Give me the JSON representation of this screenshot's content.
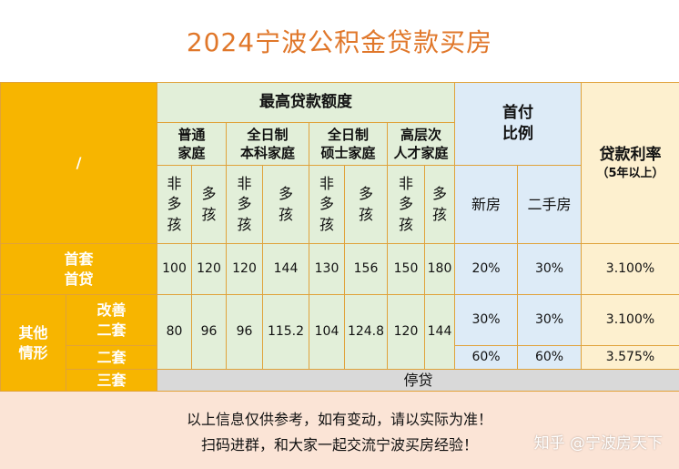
{
  "title": "2024宁波公积金贷款买房",
  "corner": "/",
  "header": {
    "max_loan": "最高贷款额度",
    "categories": [
      {
        "line1": "普通",
        "line2": "家庭"
      },
      {
        "line1": "全日制",
        "line2": "本科家庭"
      },
      {
        "line1": "全日制",
        "line2": "硕士家庭"
      },
      {
        "line1": "高层次",
        "line2": "人才家庭"
      }
    ],
    "non_multi": [
      "非",
      "多",
      "孩"
    ],
    "multi": [
      "多",
      "孩"
    ],
    "down_payment": {
      "line1": "首付",
      "line2": "比例"
    },
    "new_house": "新房",
    "second_hand": "二手房",
    "rate": {
      "line1": "贷款利率",
      "line2": "（5年以上）"
    }
  },
  "rows": {
    "first": {
      "label1": "首套",
      "label2": "首贷",
      "values": [
        "100",
        "120",
        "120",
        "144",
        "130",
        "156",
        "150",
        "180"
      ],
      "new": "20%",
      "second": "30%",
      "rate": "3.100%"
    },
    "other_label": {
      "line1": "其他",
      "line2": "情形"
    },
    "improve": {
      "label1": "改善",
      "label2": "二套",
      "values": [
        "80",
        "96",
        "96",
        "115.2",
        "104",
        "124.8",
        "120",
        "144"
      ],
      "new": "30%",
      "second": "30%",
      "rate": "3.100%"
    },
    "second": {
      "label": "二套",
      "new": "60%",
      "second": "60%",
      "rate": "3.575%"
    },
    "third": {
      "label": "三套",
      "status": "停贷"
    }
  },
  "notes": {
    "line1": "以上信息仅供参考，如有变动，请以实际为准！",
    "line2": "扫码进群，和大家一起交流宁波买房经验！"
  },
  "watermark": "知乎 @宁波房天下"
}
